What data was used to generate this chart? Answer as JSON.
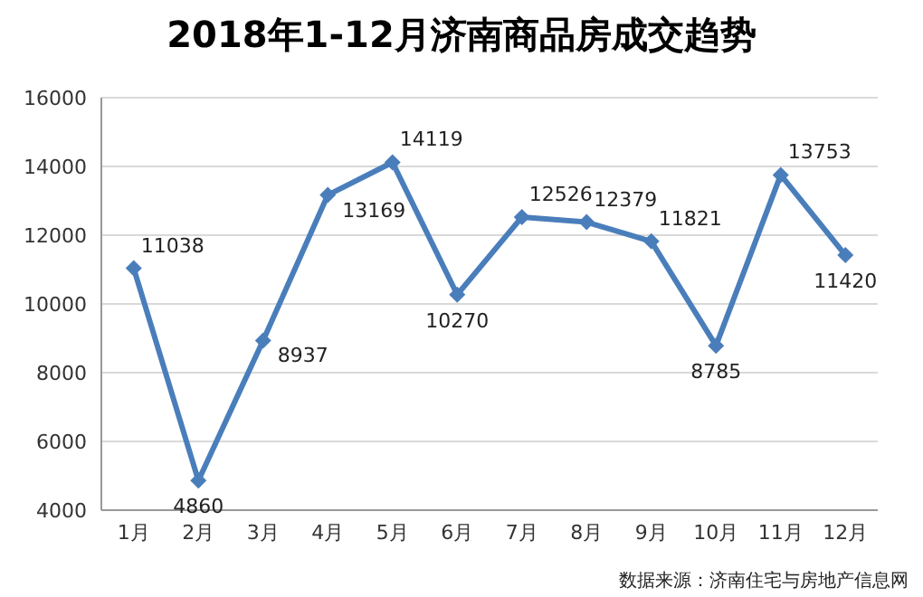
{
  "chart_data": {
    "type": "line",
    "title": "2018年1-12月济南商品房成交趋势",
    "categories": [
      "1月",
      "2月",
      "3月",
      "4月",
      "5月",
      "6月",
      "7月",
      "8月",
      "9月",
      "10月",
      "11月",
      "12月"
    ],
    "series": [
      {
        "color": "#4a7ebb",
        "values": [
          11038,
          4860,
          8937,
          13169,
          14119,
          10270,
          12526,
          12379,
          11821,
          8785,
          13753,
          11420
        ]
      }
    ],
    "ylim": [
      4000,
      16000
    ],
    "yticks": [
      4000,
      6000,
      8000,
      10000,
      12000,
      14000,
      16000
    ],
    "grid": "y",
    "legend": false,
    "marker": "diamond",
    "line_style": "solid",
    "data_labels": true,
    "annotations": [
      "数据来源：济南住宅与房地产信息网"
    ]
  }
}
